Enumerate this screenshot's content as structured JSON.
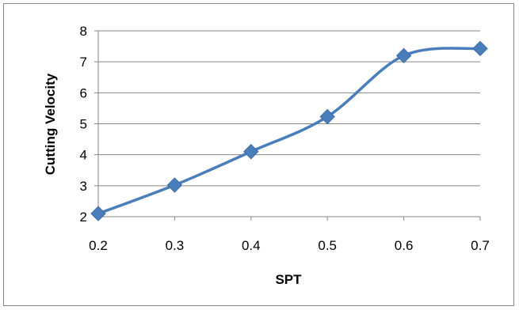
{
  "chart_data": {
    "type": "line",
    "title": "",
    "xlabel": "SPT",
    "ylabel": "Cutting Velocity",
    "x": [
      0.2,
      0.3,
      0.4,
      0.5,
      0.6,
      0.7
    ],
    "x_tick_labels": [
      "0.2",
      "0.3",
      "0.4",
      "0.5",
      "0.6",
      "0.7"
    ],
    "y_tick_labels": [
      "2",
      "3",
      "4",
      "5",
      "6",
      "7",
      "8"
    ],
    "xlim": [
      0.2,
      0.7
    ],
    "ylim": [
      2,
      8
    ],
    "grid": "horizontal",
    "legend": "none",
    "series": [
      {
        "values": [
          2.1,
          3.02,
          4.1,
          5.23,
          7.2,
          7.43
        ],
        "color": "#4a7ebb",
        "marker": "diamond",
        "smooth": true
      }
    ]
  }
}
